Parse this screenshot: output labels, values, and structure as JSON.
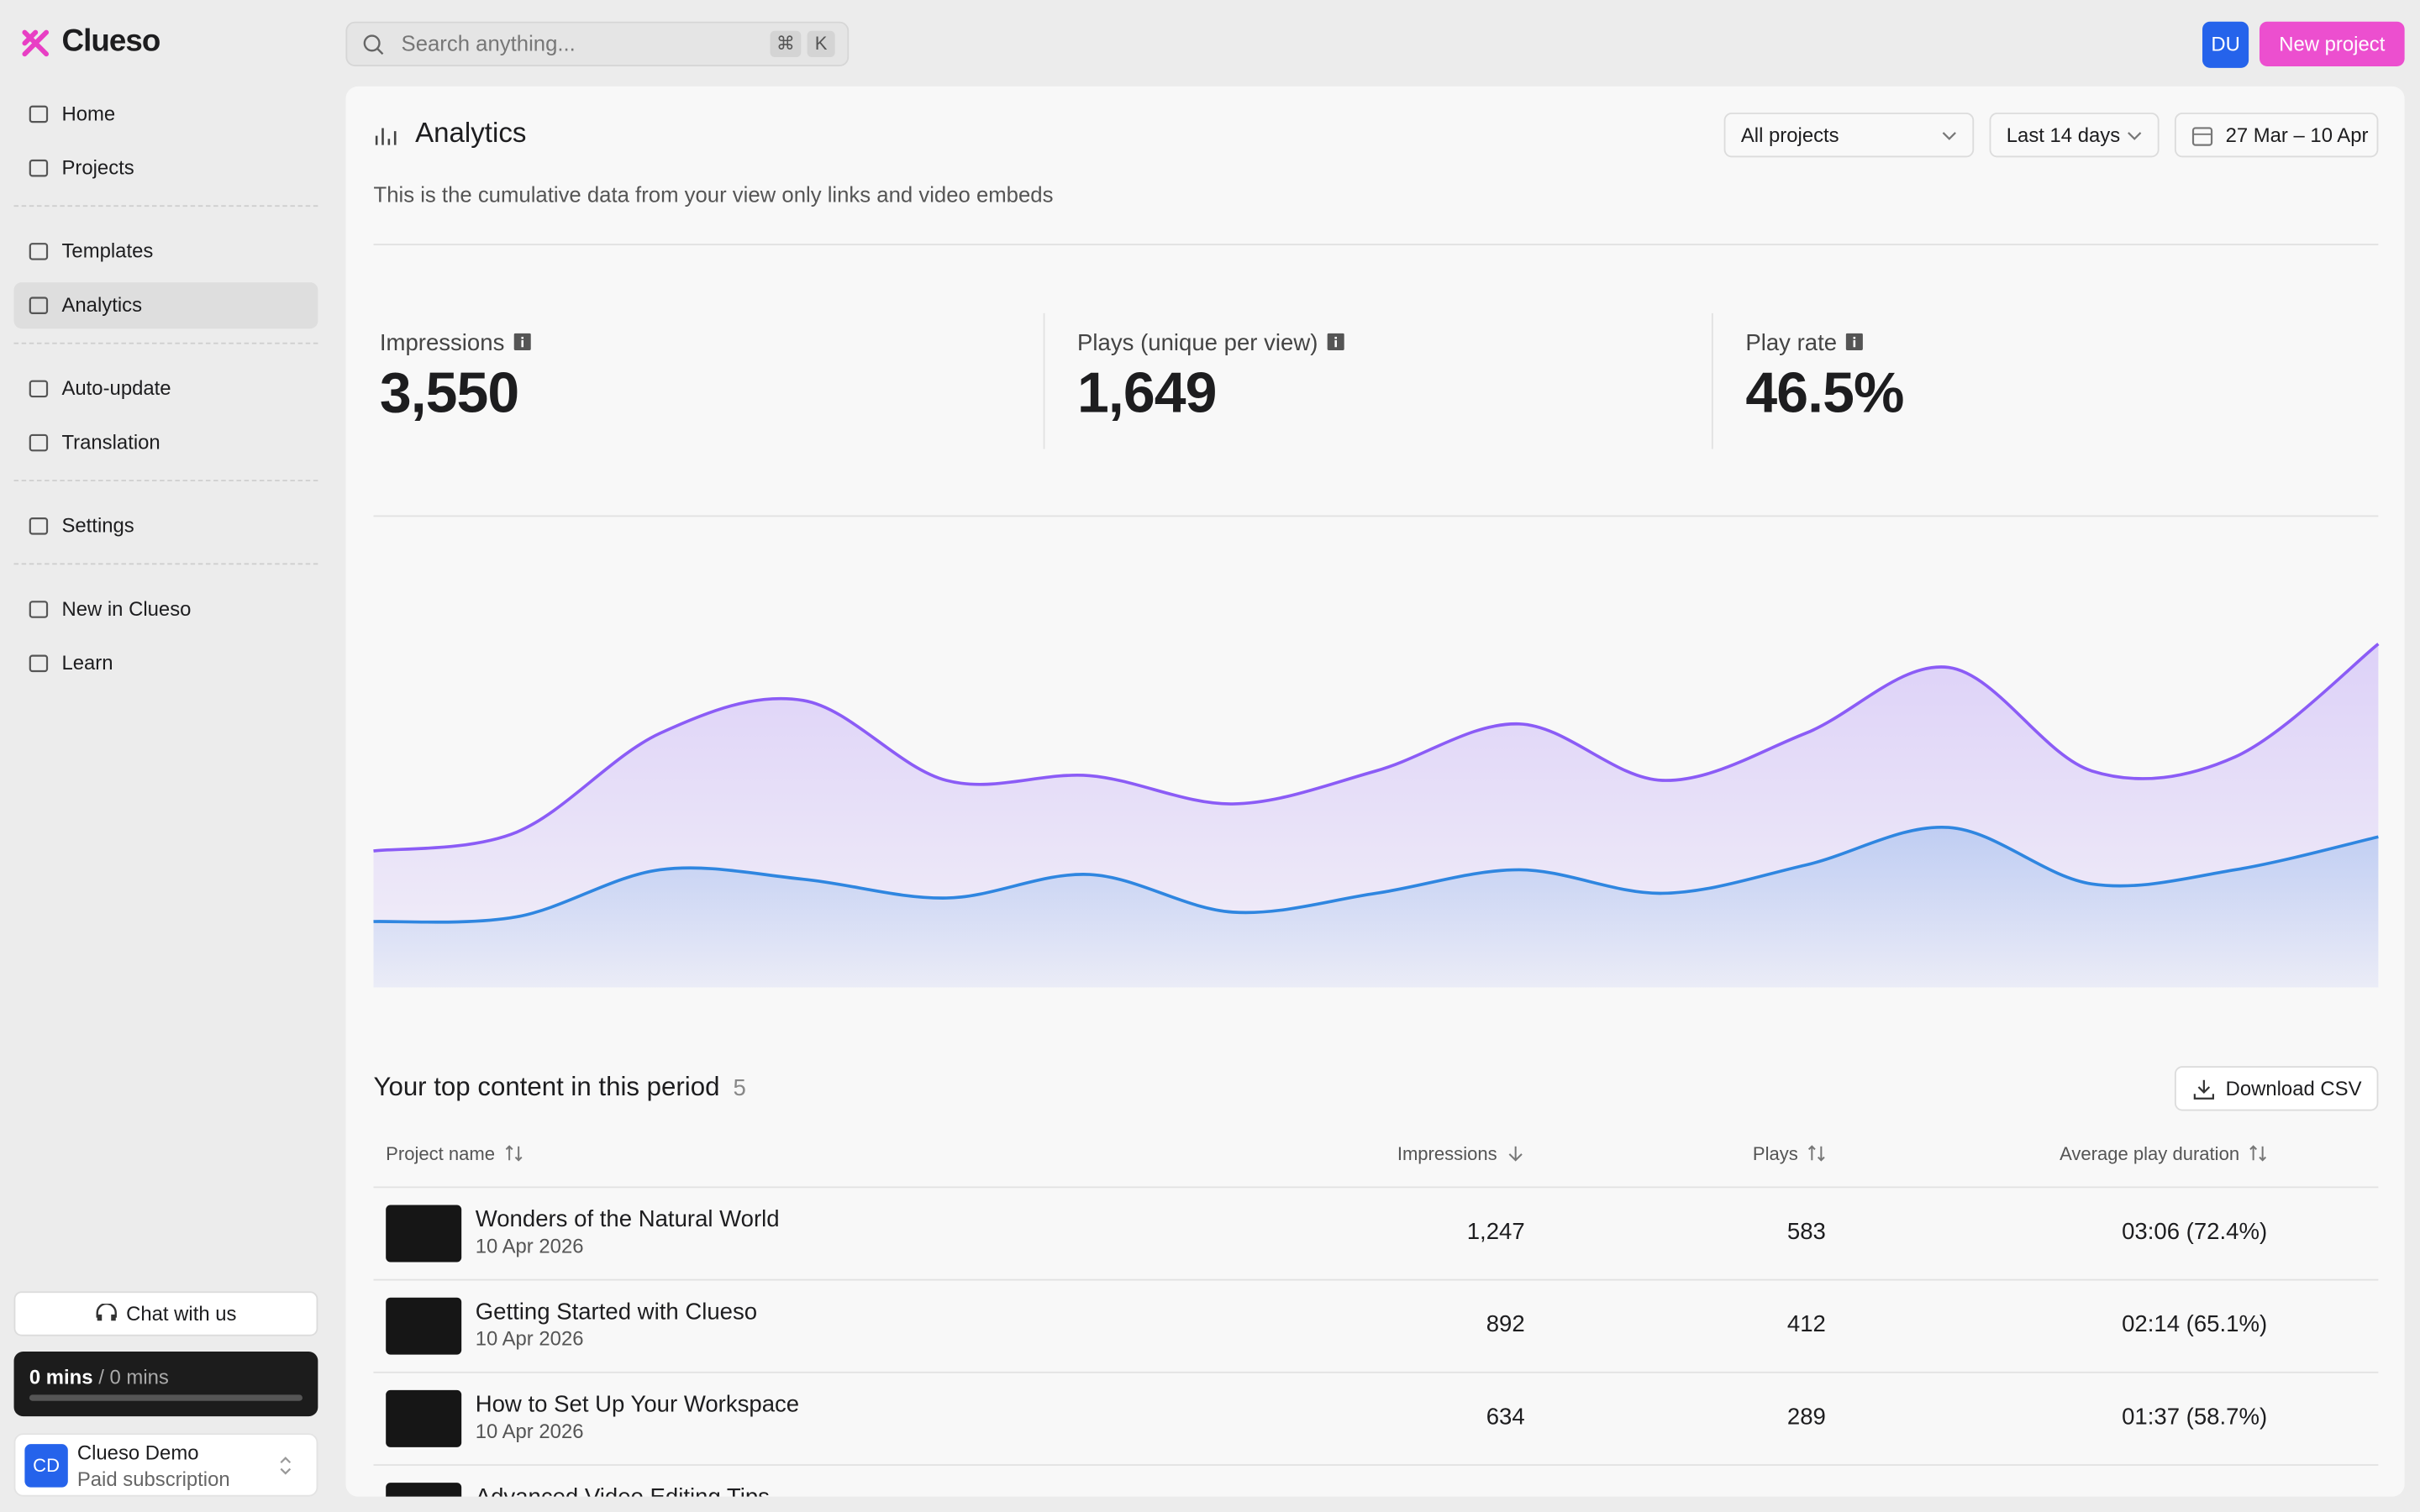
{
  "sidebar": {
    "brand": "Clueso",
    "nav": [
      [
        "Home",
        "Projects"
      ],
      [
        "Templates",
        "Analytics"
      ],
      [
        "Auto-update",
        "Translation"
      ],
      [
        "Settings"
      ],
      [
        "New in Clueso",
        "Learn"
      ]
    ],
    "active": [
      1,
      1
    ],
    "chat": "Chat with us",
    "usage": {
      "used": "0 mins",
      "separator": "/",
      "total": "0 mins"
    },
    "account": {
      "initials": "CD",
      "name": "Clueso Demo",
      "plan": "Paid subscription"
    }
  },
  "header": {
    "search": "Search anything...",
    "shortcut": [
      "⌘",
      "K"
    ],
    "avatar": "DU",
    "button": "New project"
  },
  "analytics": {
    "title": "Analytics",
    "filters": [
      "All projects",
      "Last 14 days"
    ],
    "date_range": "27 Mar – 10 Apr",
    "description": "This is the cumulative data from your view only links and video embeds",
    "stats": [
      {
        "label": "Impressions",
        "value": "3,550"
      },
      {
        "label": "Plays (unique per view)",
        "value": "1,649"
      },
      {
        "label": "Play rate",
        "value": "46.5%"
      }
    ]
  },
  "chart": {
    "type": "area",
    "ylim": [
      0,
      100
    ],
    "series": [
      {
        "color": "#8b5cf6",
        "values": [
          29,
          33,
          54,
          61,
          44,
          45,
          39,
          46,
          56,
          44,
          54,
          68,
          46,
          49,
          73
        ]
      },
      {
        "color": "#2f86e0",
        "values": [
          14,
          15,
          25,
          23,
          19,
          24,
          16,
          20,
          25,
          20,
          26,
          34,
          22,
          25,
          32
        ]
      }
    ]
  },
  "table": {
    "title": "Your top content in this period",
    "count": 5,
    "button": "Download CSV",
    "columns": [
      "Project name",
      "Impressions",
      "Plays",
      "Average play duration"
    ],
    "rows": [
      [
        "Wonders of the Natural World",
        "10 Apr 2026",
        "1,247",
        "583",
        "03:06 (72.4%)"
      ],
      [
        "Getting Started with Clueso",
        "10 Apr 2026",
        "892",
        "412",
        "02:14 (65.1%)"
      ],
      [
        "How to Set Up Your Workspace",
        "10 Apr 2026",
        "634",
        "289",
        "01:37 (58.7%)"
      ],
      [
        "Advanced Video Editing Tips"
      ]
    ]
  }
}
